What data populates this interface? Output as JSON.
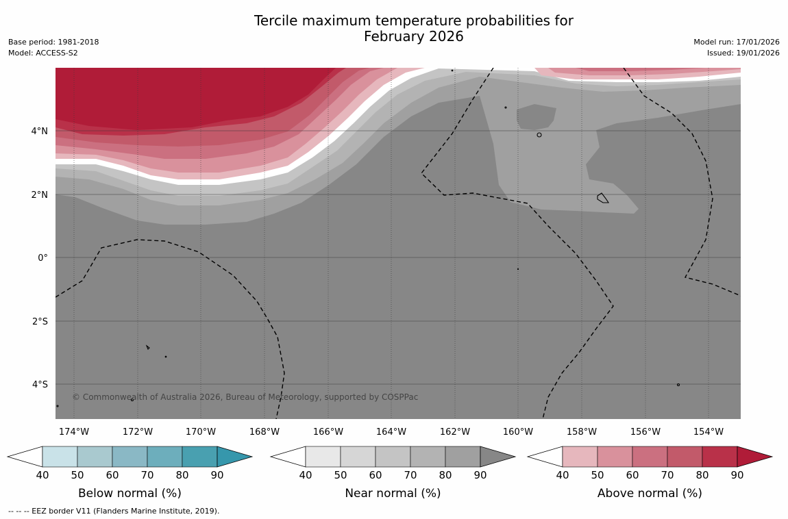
{
  "header": {
    "title_line1": "Tercile maximum temperature probabilities for",
    "title_line2": "February 2026",
    "base_period": "Base period: 1981-2018",
    "model": "Model: ACCESS-S2",
    "model_run": "Model run: 17/01/2026",
    "issued": "Issued: 19/01/2026"
  },
  "map": {
    "lat_labels": [
      "4°N",
      "2°N",
      "0°",
      "2°S",
      "4°S"
    ],
    "lon_labels": [
      "174°W",
      "172°W",
      "170°W",
      "168°W",
      "166°W",
      "164°W",
      "162°W",
      "160°W",
      "158°W",
      "156°W",
      "154°W"
    ],
    "copyright": "© Commonwealth of Australia 2026, Bureau of Meteorology, supported by COSPPac",
    "colors": {
      "near_30": "#ffffff",
      "near_40": "#e8e8e8",
      "near_50": "#d6d6d6",
      "near_60": "#c4c4c4",
      "near_70": "#b3b3b3",
      "near_80": "#a0a0a0",
      "near_90": "#878787",
      "above_40": "#e6b7bd",
      "above_50": "#d9919c",
      "above_60": "#cb7080",
      "above_70": "#c25a6a",
      "above_80": "#b93149",
      "above_90": "#b01c38"
    }
  },
  "colorbars": [
    {
      "label": "Below normal (%)",
      "ticks": [
        "40",
        "50",
        "60",
        "70",
        "80",
        "90"
      ],
      "colors": [
        "#c9e2e8",
        "#a9c9cf",
        "#8ab8c5",
        "#6daebc",
        "#49a0b0",
        "#3697ac"
      ]
    },
    {
      "label": "Near normal (%)",
      "ticks": [
        "40",
        "50",
        "60",
        "70",
        "80",
        "90"
      ],
      "colors": [
        "#e8e8e8",
        "#d6d6d6",
        "#c4c4c4",
        "#b3b3b3",
        "#a0a0a0",
        "#878787"
      ]
    },
    {
      "label": "Above normal (%)",
      "ticks": [
        "40",
        "50",
        "60",
        "70",
        "80",
        "90"
      ],
      "colors": [
        "#e6b7bd",
        "#d9919c",
        "#cb7080",
        "#c25a6a",
        "#b93149",
        "#b01c38"
      ]
    }
  ],
  "footnote": "--  --  -- EEZ border V11 (Flanders Marine Institute, 2019)."
}
